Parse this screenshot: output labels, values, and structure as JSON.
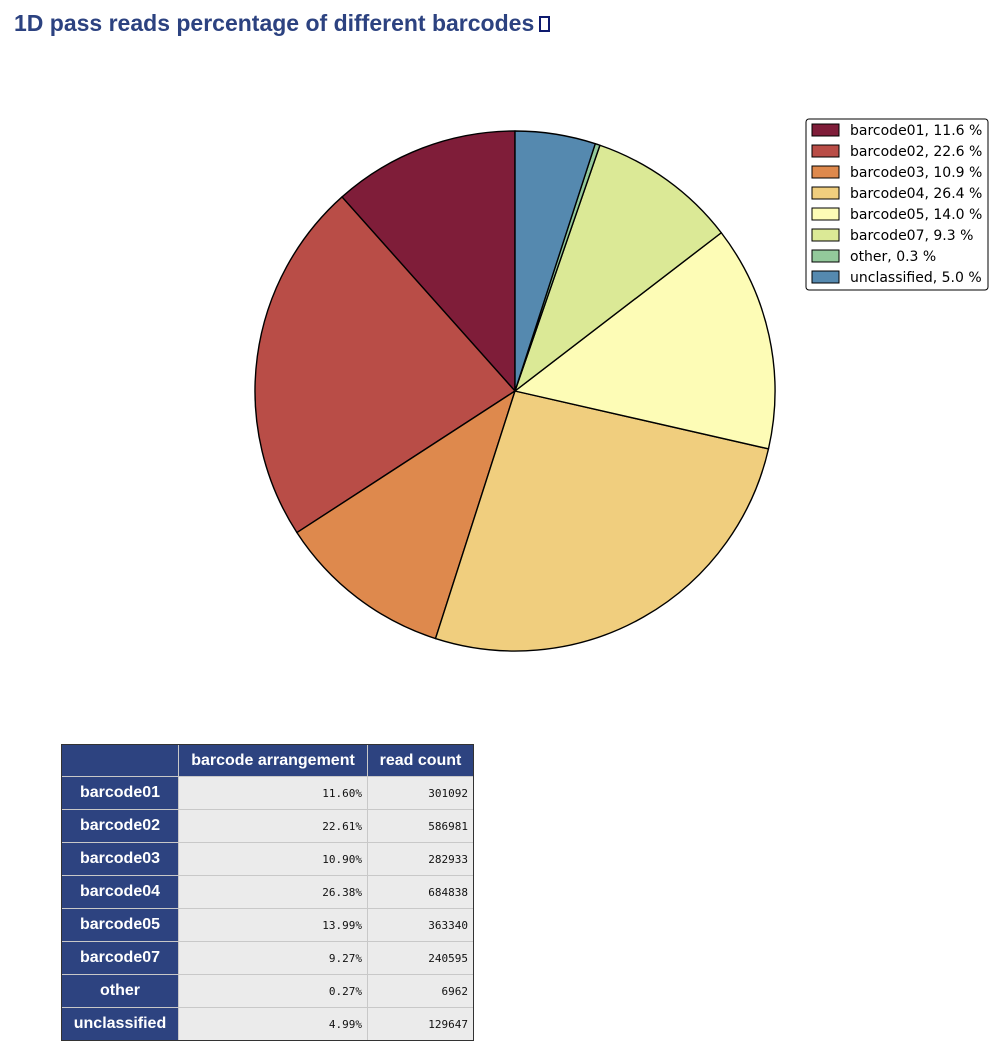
{
  "page": {
    "title": "1D pass reads percentage of different barcodes"
  },
  "chart_data": {
    "type": "pie",
    "title": "",
    "start_angle_deg": 90,
    "direction": "counterclockwise",
    "edge_color": "#000000",
    "legend_position": "upper-right",
    "slices": [
      {
        "label": "barcode01",
        "value": 11.6,
        "color": "#7f1d39",
        "legend": "barcode01, 11.6 %"
      },
      {
        "label": "barcode02",
        "value": 22.6,
        "color": "#b94d47",
        "legend": "barcode02, 22.6 %"
      },
      {
        "label": "barcode03",
        "value": 10.9,
        "color": "#de894d",
        "legend": "barcode03, 10.9 %"
      },
      {
        "label": "barcode04",
        "value": 26.4,
        "color": "#f0ce7e",
        "legend": "barcode04, 26.4 %"
      },
      {
        "label": "barcode05",
        "value": 14.0,
        "color": "#fdfcb6",
        "legend": "barcode05, 14.0 %"
      },
      {
        "label": "barcode07",
        "value": 9.3,
        "color": "#dbe996",
        "legend": "barcode07, 9.3 %"
      },
      {
        "label": "other",
        "value": 0.3,
        "color": "#93c99b",
        "legend": "other, 0.3 %"
      },
      {
        "label": "unclassified",
        "value": 5.0,
        "color": "#5589af",
        "legend": "unclassified, 5.0 %"
      }
    ]
  },
  "table": {
    "corner_header": "",
    "columns": [
      "barcode arrangement",
      "read count"
    ],
    "rows": [
      {
        "name": "barcode01",
        "percent": "11.60%",
        "count": "301092"
      },
      {
        "name": "barcode02",
        "percent": "22.61%",
        "count": "586981"
      },
      {
        "name": "barcode03",
        "percent": "10.90%",
        "count": "282933"
      },
      {
        "name": "barcode04",
        "percent": "26.38%",
        "count": "684838"
      },
      {
        "name": "barcode05",
        "percent": "13.99%",
        "count": "363340"
      },
      {
        "name": "barcode07",
        "percent": "9.27%",
        "count": "240595"
      },
      {
        "name": "other",
        "percent": "0.27%",
        "count": "6962"
      },
      {
        "name": "unclassified",
        "percent": "4.99%",
        "count": "129647"
      }
    ]
  }
}
